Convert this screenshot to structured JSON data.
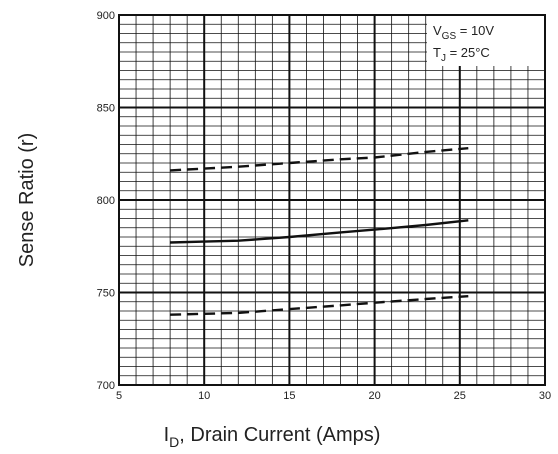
{
  "chart_data": {
    "type": "line",
    "xlabel": "I",
    "xlabel_sub": "D",
    "xlabel_rest": ", Drain Current (Amps)",
    "ylabel": "Sense Ratio (r)",
    "xlim": [
      5,
      30
    ],
    "ylim": [
      700,
      900
    ],
    "x_ticks": [
      "5",
      "10",
      "15",
      "20",
      "25",
      "30"
    ],
    "y_ticks": [
      "700",
      "750",
      "800",
      "850",
      "900"
    ],
    "grid": true,
    "conditions": {
      "line1_main": "V",
      "line1_sub": "GS",
      "line1_rest": " = 10V",
      "line2_main": "T",
      "line2_sub": "J",
      "line2_rest": " = 25°C"
    },
    "series": [
      {
        "style": "dashed",
        "x": [
          8,
          10,
          12,
          15,
          18,
          20,
          23,
          25.5
        ],
        "y": [
          816,
          817,
          818,
          820,
          822,
          823,
          826,
          828
        ]
      },
      {
        "style": "solid",
        "x": [
          8,
          10,
          12,
          15,
          18,
          20,
          23,
          25.5
        ],
        "y": [
          777,
          777.5,
          778,
          780,
          782.5,
          784,
          786.5,
          789
        ]
      },
      {
        "style": "dashed",
        "x": [
          8,
          10,
          12,
          15,
          18,
          20,
          23,
          25.5
        ],
        "y": [
          738,
          738.5,
          739,
          741,
          743,
          744.5,
          746.5,
          748
        ]
      }
    ]
  }
}
